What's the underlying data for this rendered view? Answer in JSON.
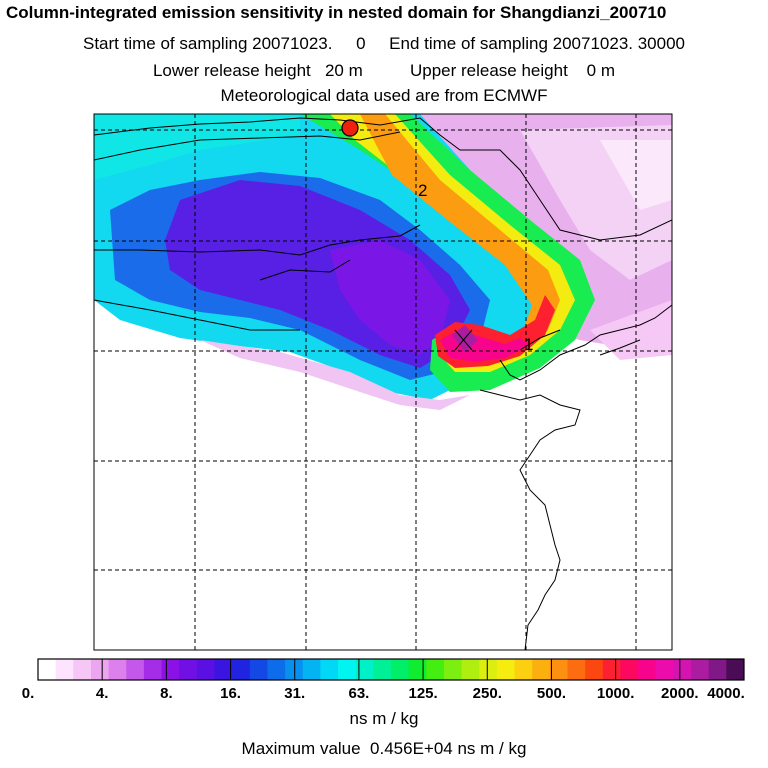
{
  "header": {
    "title": "Column-integrated emission sensitivity in nested domain for Shangdianzi_200710",
    "sampling": "Start time of sampling 20071023.     0     End time of sampling 20071023. 30000",
    "release": "Lower release height   20 m          Upper release height    0 m",
    "met": "Meteorological data used are from ECMWF"
  },
  "map": {
    "markers": [
      {
        "id": "release-site",
        "label": ""
      },
      {
        "id": "label-2",
        "label": "2"
      },
      {
        "id": "label-1",
        "label": "1"
      }
    ]
  },
  "colorbar": {
    "tick_labels": [
      "0.",
      "4.",
      "8.",
      "16.",
      "31.",
      "63.",
      "125.",
      "250.",
      "500.",
      "1000.",
      "2000.",
      "4000."
    ],
    "colors": [
      "#ffffff",
      "#fde3fd",
      "#f6c6f6",
      "#eca5ef",
      "#dc80ec",
      "#c458ea",
      "#a52de8",
      "#8a12e6",
      "#7010e4",
      "#5a10e2",
      "#3a14e0",
      "#2024e0",
      "#1448e4",
      "#0c6cea",
      "#0890ef",
      "#04b4f2",
      "#00d8f5",
      "#00f4f0",
      "#00f0c8",
      "#00f098",
      "#00ee68",
      "#10ec30",
      "#44ee10",
      "#7cee10",
      "#b0ee10",
      "#dcee10",
      "#f6ec10",
      "#fcd010",
      "#fcb010",
      "#fc9010",
      "#fc6c10",
      "#fc4810",
      "#fc2030",
      "#fc0860",
      "#f8048c",
      "#ec0cac",
      "#d414b0",
      "#ac1ca0",
      "#801888",
      "#4a0c54"
    ],
    "units": "ns m / kg",
    "max_value": "Maximum value  0.456E+04 ns m / kg"
  }
}
